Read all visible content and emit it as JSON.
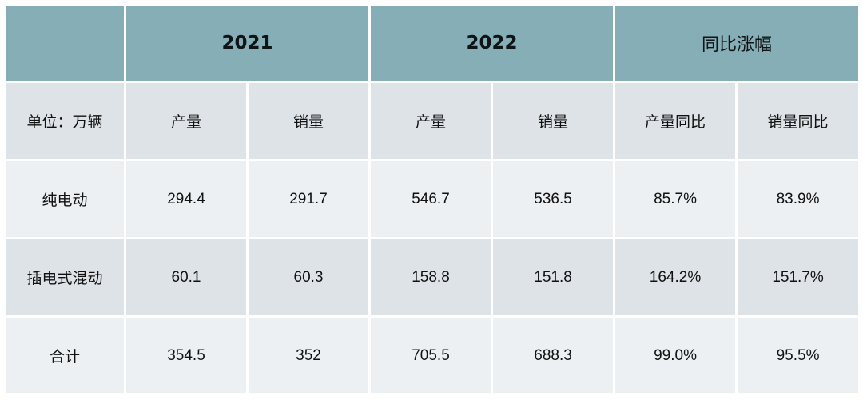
{
  "table": {
    "header": {
      "corner": "",
      "groups": [
        "2021",
        "2022",
        "同比涨幅"
      ]
    },
    "subheader": {
      "unit_label": "单位：万辆",
      "columns": [
        "产量",
        "销量",
        "产量",
        "销量",
        "产量同比",
        "销量同比"
      ]
    },
    "rows": [
      {
        "label": "纯电动",
        "values": [
          "294.4",
          "291.7",
          "546.7",
          "536.5",
          "85.7%",
          "83.9%"
        ]
      },
      {
        "label": "插电式混动",
        "values": [
          "60.1",
          "60.3",
          "158.8",
          "151.8",
          "164.2%",
          "151.7%"
        ]
      },
      {
        "label": "合计",
        "values": [
          "354.5",
          "352",
          "705.5",
          "688.3",
          "99.0%",
          "95.5%"
        ]
      }
    ]
  },
  "colors": {
    "header_bg": "#86aeb6",
    "row_dark_bg": "#dde3e6",
    "row_light_bg": "#ecf0f2"
  }
}
